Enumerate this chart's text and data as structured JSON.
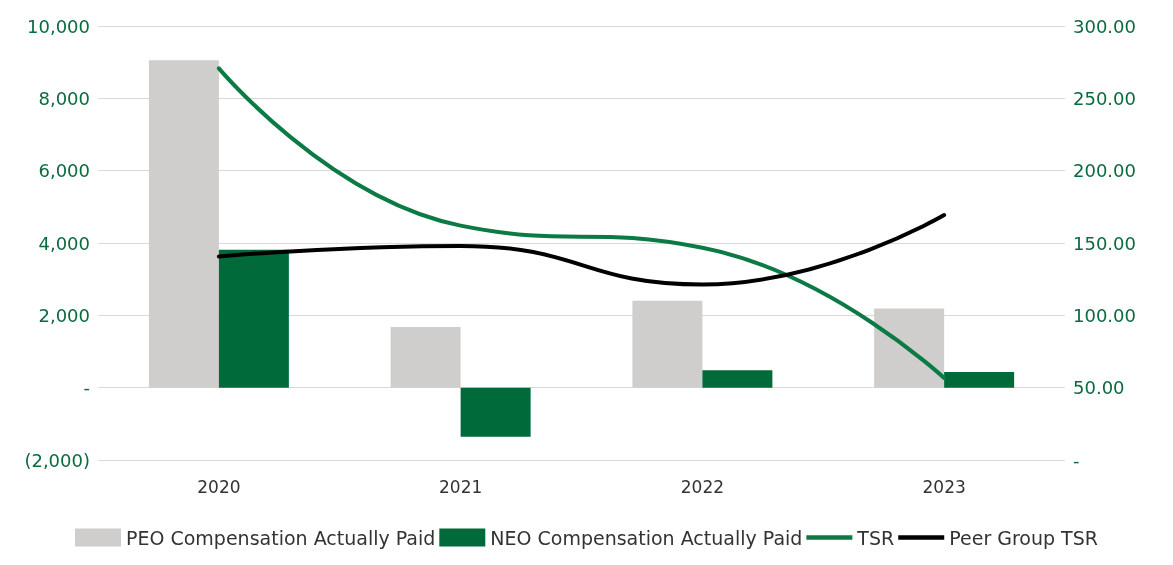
{
  "chart_data": {
    "type": "bar",
    "categories": [
      "2020",
      "2021",
      "2022",
      "2023"
    ],
    "series": [
      {
        "name": "PEO Compensation Actually Paid",
        "color": "#d0cecd",
        "values": [
          9050,
          1680,
          2400,
          2190
        ]
      },
      {
        "name": "NEO Compensation Actually Paid",
        "color": "#006a3a",
        "values": [
          3810,
          -1360,
          480,
          430
        ]
      },
      {
        "name": "TSR",
        "type": "line",
        "axis": "y2",
        "color": "#0b7a45",
        "values": [
          270.7,
          162,
          146.7,
          56.7
        ]
      },
      {
        "name": "Peer Group TSR",
        "type": "line",
        "axis": "y2",
        "color": "#000000",
        "values": [
          140.7,
          148,
          121.3,
          169.3
        ]
      }
    ],
    "ylim": [
      -2000,
      10000
    ],
    "yticks": [
      {
        "value": -2000,
        "label": "(2,000)"
      },
      {
        "value": 0,
        "label": "-"
      },
      {
        "value": 2000,
        "label": "2,000"
      },
      {
        "value": 4000,
        "label": "4,000"
      },
      {
        "value": 6000,
        "label": "6,000"
      },
      {
        "value": 8000,
        "label": "8,000"
      },
      {
        "value": 10000,
        "label": "10,000"
      }
    ],
    "y2lim": [
      0,
      300
    ],
    "y2ticks": [
      {
        "value": 0,
        "label": "-"
      },
      {
        "value": 50,
        "label": "50.00"
      },
      {
        "value": 100,
        "label": "100.00"
      },
      {
        "value": 150,
        "label": "150.00"
      },
      {
        "value": 200,
        "label": "200.00"
      },
      {
        "value": 250,
        "label": "250.00"
      },
      {
        "value": 300,
        "label": "300.00"
      }
    ],
    "grid": "y",
    "legend": "bottom",
    "line_style": "solid",
    "marker": "none"
  }
}
